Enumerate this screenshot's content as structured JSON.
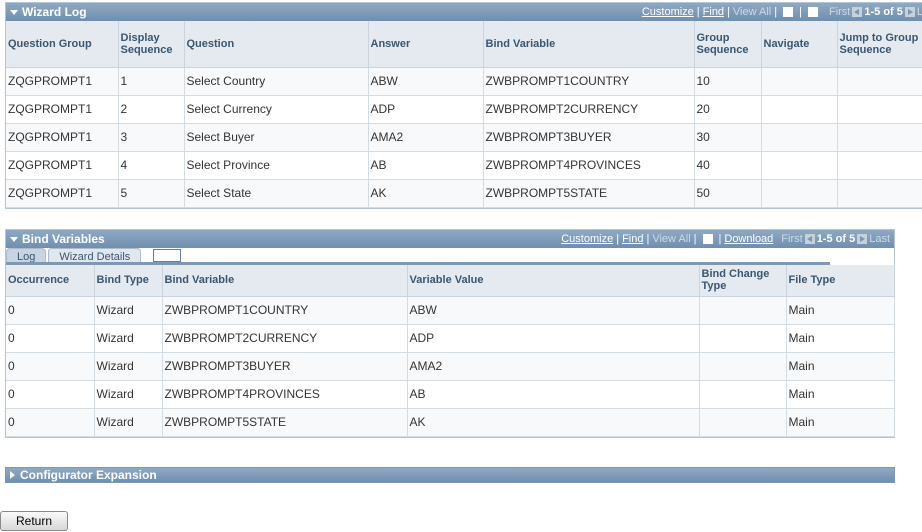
{
  "wizard_log": {
    "title": "Wizard Log",
    "nav": {
      "customize": "Customize",
      "find": "Find",
      "view_all": "View All",
      "first": "First",
      "range": "1-5 of 5",
      "last": "L"
    },
    "columns": [
      "Question Group",
      "Display Sequence",
      "Question",
      "Answer",
      "Bind Variable",
      "Group Sequence",
      "Navigate",
      "Jump to Group Sequence"
    ],
    "rows": [
      [
        "ZQGPROMPT1",
        "1",
        "Select Country",
        "ABW",
        "ZWBPROMPT1COUNTRY",
        "10",
        "",
        ""
      ],
      [
        "ZQGPROMPT1",
        "2",
        "Select Currency",
        "ADP",
        "ZWBPROMPT2CURRENCY",
        "20",
        "",
        ""
      ],
      [
        "ZQGPROMPT1",
        "3",
        "Select Buyer",
        "AMA2",
        "ZWBPROMPT3BUYER",
        "30",
        "",
        ""
      ],
      [
        "ZQGPROMPT1",
        "4",
        "Select Province",
        "AB",
        "ZWBPROMPT4PROVINCES",
        "40",
        "",
        ""
      ],
      [
        "ZQGPROMPT1",
        "5",
        "Select State",
        "AK",
        "ZWBPROMPT5STATE",
        "50",
        "",
        ""
      ]
    ]
  },
  "bind_variables": {
    "title": "Bind Variables",
    "nav": {
      "customize": "Customize",
      "find": "Find",
      "view_all": "View All",
      "download": "Download",
      "first": "First",
      "range": "1-5 of 5",
      "last": "Last"
    },
    "tabs": [
      "Log",
      "Wizard Details"
    ],
    "columns": [
      "Occurrence",
      "Bind Type",
      "Bind Variable",
      "Variable Value",
      "Bind Change Type",
      "File Type"
    ],
    "rows": [
      [
        "0",
        "Wizard",
        "ZWBPROMPT1COUNTRY",
        "ABW",
        "",
        "Main"
      ],
      [
        "0",
        "Wizard",
        "ZWBPROMPT2CURRENCY",
        "ADP",
        "",
        "Main"
      ],
      [
        "0",
        "Wizard",
        "ZWBPROMPT3BUYER",
        "AMA2",
        "",
        "Main"
      ],
      [
        "0",
        "Wizard",
        "ZWBPROMPT4PROVINCES",
        "AB",
        "",
        "Main"
      ],
      [
        "0",
        "Wizard",
        "ZWBPROMPT5STATE",
        "AK",
        "",
        "Main"
      ]
    ]
  },
  "configurator_expansion": {
    "title": "Configurator Expansion"
  },
  "return_label": "Return"
}
